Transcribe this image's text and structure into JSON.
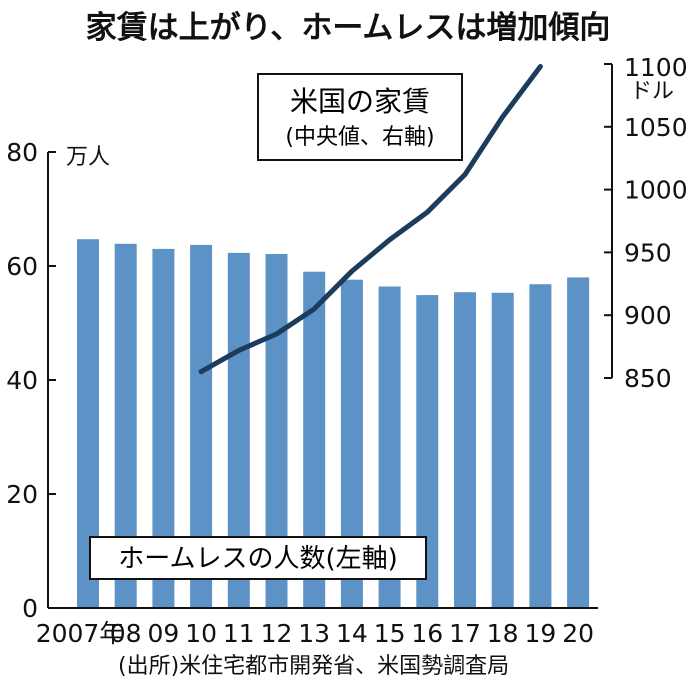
{
  "title": "家賃は上がり、ホームレスは増加傾向",
  "source": "(出所)米住宅都市開発省、米国勢調査局",
  "chart_data": {
    "type": "bar",
    "categories": [
      "2007年",
      "08",
      "09",
      "10",
      "11",
      "12",
      "13",
      "14",
      "15",
      "16",
      "17",
      "18",
      "19",
      "20"
    ],
    "series": [
      {
        "name": "ホームレスの人数(左軸)",
        "type": "bar",
        "axis": "left",
        "values": [
          64.7,
          63.9,
          63.0,
          63.7,
          62.3,
          62.1,
          59.0,
          57.6,
          56.4,
          54.9,
          55.4,
          55.3,
          56.8,
          58.0
        ]
      },
      {
        "name": "米国の家賃",
        "sublabel": "(中央値、右軸)",
        "type": "line",
        "axis": "right",
        "x": [
          "10",
          "11",
          "12",
          "13",
          "14",
          "15",
          "16",
          "17",
          "18",
          "19"
        ],
        "values": [
          855,
          872,
          885,
          905,
          935,
          960,
          982,
          1012,
          1058,
          1098
        ]
      }
    ],
    "left_axis": {
      "unit": "万人",
      "ticks": [
        0,
        20,
        40,
        60,
        80
      ],
      "ylim": [
        0,
        80
      ]
    },
    "right_axis": {
      "unit": "ドル",
      "ticks": [
        850,
        900,
        950,
        1000,
        1050,
        1100
      ],
      "ylim": [
        850,
        1100
      ]
    },
    "colors": {
      "bar": "#5d92c6",
      "line": "#1c3c5e",
      "axis": "#111111"
    }
  }
}
